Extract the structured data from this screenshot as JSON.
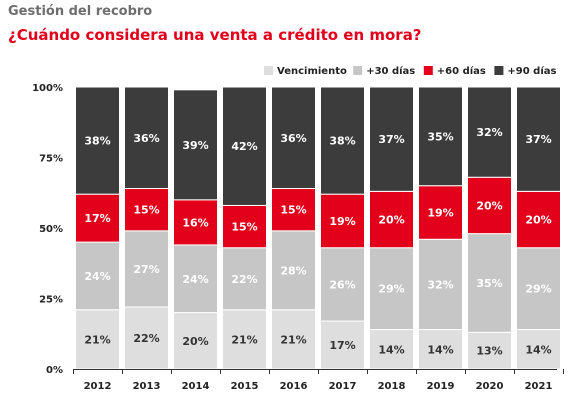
{
  "chart_data": {
    "type": "bar",
    "stacked": true,
    "subtitle": "Gestión del recobro",
    "title": "¿Cuándo considera una venta a crédito en mora?",
    "xlabel": "",
    "ylabel": "",
    "ylim": [
      0,
      100
    ],
    "y_ticks": [
      "0%",
      "25%",
      "50%",
      "75%",
      "100%"
    ],
    "y_tick_values": [
      0,
      25,
      50,
      75,
      100
    ],
    "legend_position": "top-right",
    "grid": false,
    "categories": [
      "2012",
      "2013",
      "2014",
      "2015",
      "2016",
      "2017",
      "2018",
      "2019",
      "2020",
      "2021"
    ],
    "series": [
      {
        "name": "Vencimiento",
        "color": "#dedede",
        "label_color": "#333333",
        "values": [
          21,
          22,
          20,
          21,
          21,
          17,
          14,
          14,
          13,
          14
        ]
      },
      {
        "name": "+30 días",
        "color": "#c6c6c6",
        "label_color": "#ffffff",
        "values": [
          24,
          27,
          24,
          22,
          28,
          26,
          29,
          32,
          35,
          29
        ]
      },
      {
        "name": "+60 días",
        "color": "#e2001a",
        "label_color": "#ffffff",
        "values": [
          17,
          15,
          16,
          15,
          15,
          19,
          20,
          19,
          20,
          20
        ]
      },
      {
        "name": "+90 días",
        "color": "#3c3c3c",
        "label_color": "#ffffff",
        "values": [
          38,
          36,
          39,
          42,
          36,
          38,
          37,
          35,
          32,
          37
        ]
      }
    ]
  }
}
